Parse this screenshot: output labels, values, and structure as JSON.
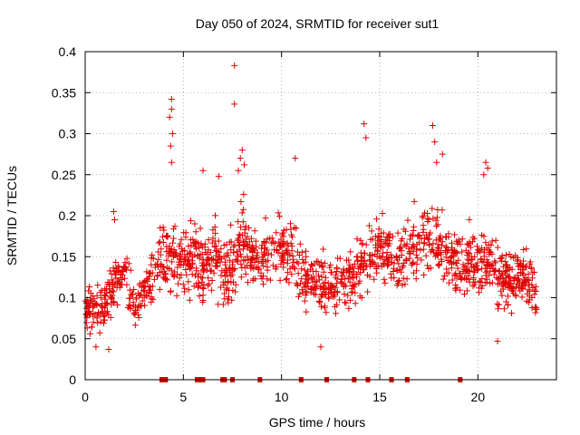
{
  "chart_data": {
    "type": "scatter",
    "title": "Day 050 of 2024, SRMTID for receiver sut1",
    "xlabel": "GPS time / hours",
    "ylabel": "SRMTID / TECUs",
    "xlim": [
      0,
      24.0
    ],
    "ylim": [
      0,
      0.4
    ],
    "xticks": [
      0,
      5,
      10,
      15,
      20
    ],
    "yticks": [
      0,
      0.05,
      0.1,
      0.15,
      0.2,
      0.25,
      0.3,
      0.35,
      0.4
    ],
    "xtick_labels": [
      "0",
      "5",
      "10",
      "15",
      "20"
    ],
    "ytick_labels": [
      "0",
      "0.05",
      "0.1",
      "0.15",
      "0.2",
      "0.25",
      "0.3",
      "0.35",
      "0.4"
    ],
    "grid": true,
    "marker": "plus",
    "series_color": "#e00000",
    "baseline_markers_x": [
      3.9,
      4.1,
      5.7,
      5.9,
      6.0,
      7.0,
      7.1,
      7.5,
      8.9,
      11.0,
      12.3,
      13.7,
      14.4,
      15.6,
      16.4,
      19.1
    ],
    "envelope": {
      "x": [
        0,
        0.5,
        1,
        1.5,
        2,
        2.5,
        3,
        3.5,
        4,
        4.5,
        5,
        5.5,
        6,
        6.5,
        7,
        7.5,
        8,
        8.5,
        9,
        9.5,
        10,
        10.5,
        11,
        11.5,
        12,
        12.5,
        13,
        13.5,
        14,
        14.5,
        15,
        15.5,
        16,
        16.5,
        17,
        17.5,
        18,
        18.5,
        19,
        19.5,
        20,
        20.5,
        21,
        21.5,
        22,
        22.5,
        23
      ],
      "mean": [
        0.09,
        0.08,
        0.09,
        0.12,
        0.13,
        0.09,
        0.11,
        0.12,
        0.15,
        0.14,
        0.14,
        0.15,
        0.14,
        0.15,
        0.13,
        0.14,
        0.17,
        0.15,
        0.15,
        0.15,
        0.16,
        0.15,
        0.13,
        0.12,
        0.12,
        0.11,
        0.12,
        0.12,
        0.14,
        0.15,
        0.16,
        0.15,
        0.14,
        0.16,
        0.17,
        0.18,
        0.17,
        0.15,
        0.14,
        0.15,
        0.14,
        0.15,
        0.13,
        0.12,
        0.13,
        0.12,
        0.1
      ],
      "spread": [
        0.03,
        0.035,
        0.035,
        0.04,
        0.04,
        0.035,
        0.035,
        0.045,
        0.05,
        0.06,
        0.05,
        0.05,
        0.05,
        0.05,
        0.05,
        0.06,
        0.06,
        0.05,
        0.05,
        0.05,
        0.05,
        0.05,
        0.05,
        0.045,
        0.045,
        0.045,
        0.045,
        0.045,
        0.05,
        0.05,
        0.05,
        0.05,
        0.05,
        0.05,
        0.05,
        0.05,
        0.05,
        0.05,
        0.05,
        0.05,
        0.05,
        0.05,
        0.05,
        0.045,
        0.045,
        0.045,
        0.04
      ]
    },
    "outliers": [
      {
        "x": 7.6,
        "y": 0.383
      },
      {
        "x": 7.6,
        "y": 0.336
      },
      {
        "x": 4.4,
        "y": 0.342
      },
      {
        "x": 4.4,
        "y": 0.33
      },
      {
        "x": 4.3,
        "y": 0.32
      },
      {
        "x": 4.45,
        "y": 0.3
      },
      {
        "x": 4.35,
        "y": 0.285
      },
      {
        "x": 4.4,
        "y": 0.265
      },
      {
        "x": 14.2,
        "y": 0.312
      },
      {
        "x": 14.3,
        "y": 0.295
      },
      {
        "x": 17.7,
        "y": 0.31
      },
      {
        "x": 17.8,
        "y": 0.29
      },
      {
        "x": 18.2,
        "y": 0.275
      },
      {
        "x": 17.9,
        "y": 0.265
      },
      {
        "x": 8.0,
        "y": 0.28
      },
      {
        "x": 7.9,
        "y": 0.27
      },
      {
        "x": 8.1,
        "y": 0.262
      },
      {
        "x": 7.8,
        "y": 0.255
      },
      {
        "x": 20.4,
        "y": 0.265
      },
      {
        "x": 20.5,
        "y": 0.258
      },
      {
        "x": 20.3,
        "y": 0.25
      },
      {
        "x": 10.7,
        "y": 0.27
      },
      {
        "x": 6.0,
        "y": 0.255
      },
      {
        "x": 6.8,
        "y": 0.248
      },
      {
        "x": 1.45,
        "y": 0.205
      },
      {
        "x": 1.5,
        "y": 0.195
      },
      {
        "x": 0.55,
        "y": 0.04
      },
      {
        "x": 1.2,
        "y": 0.037
      },
      {
        "x": 12.0,
        "y": 0.04
      },
      {
        "x": 21.0,
        "y": 0.047
      }
    ]
  }
}
